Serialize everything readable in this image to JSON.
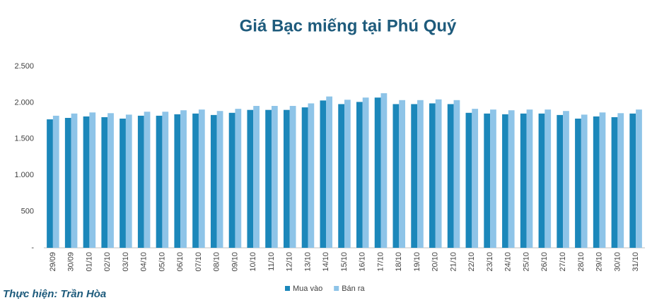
{
  "chart_data": {
    "type": "bar",
    "title": "Giá Bạc miếng tại Phú Quý",
    "credit": "Thực hiện: Trần Hòa",
    "categories": [
      "29/09",
      "30/09",
      "01/10",
      "02/10",
      "03/10",
      "04/10",
      "05/10",
      "06/10",
      "07/10",
      "08/10",
      "09/10",
      "10/10",
      "11/10",
      "12/10",
      "13/10",
      "14/10",
      "15/10",
      "16/10",
      "17/10",
      "18/10",
      "19/10",
      "20/10",
      "21/10",
      "22/10",
      "23/10",
      "24/10",
      "25/10",
      "26/10",
      "27/10",
      "28/10",
      "29/10",
      "30/10",
      "31/10"
    ],
    "series": [
      {
        "name": "Mua vào",
        "color": "#1b87ba",
        "values": [
          1770,
          1790,
          1810,
          1800,
          1780,
          1820,
          1820,
          1840,
          1850,
          1830,
          1860,
          1900,
          1900,
          1900,
          1935,
          2030,
          1980,
          2010,
          2070,
          1980,
          1980,
          1990,
          1980,
          1860,
          1850,
          1840,
          1850,
          1850,
          1830,
          1780,
          1810,
          1800,
          1850
        ]
      },
      {
        "name": "Bán ra",
        "color": "#8ec4e8",
        "values": [
          1820,
          1850,
          1865,
          1855,
          1835,
          1875,
          1875,
          1895,
          1905,
          1885,
          1915,
          1955,
          1955,
          1955,
          1990,
          2085,
          2040,
          2070,
          2130,
          2035,
          2035,
          2045,
          2035,
          1915,
          1905,
          1895,
          1905,
          1905,
          1885,
          1835,
          1865,
          1855,
          1905
        ]
      }
    ],
    "ylim": [
      0,
      2500
    ],
    "yticks": [
      {
        "value": 0,
        "label": "-"
      },
      {
        "value": 500,
        "label": "500"
      },
      {
        "value": 1000,
        "label": "1.000"
      },
      {
        "value": 1500,
        "label": "1.500"
      },
      {
        "value": 2000,
        "label": "2.000"
      },
      {
        "value": 2500,
        "label": "2.500"
      }
    ],
    "grid": false,
    "legend": "bottom"
  }
}
